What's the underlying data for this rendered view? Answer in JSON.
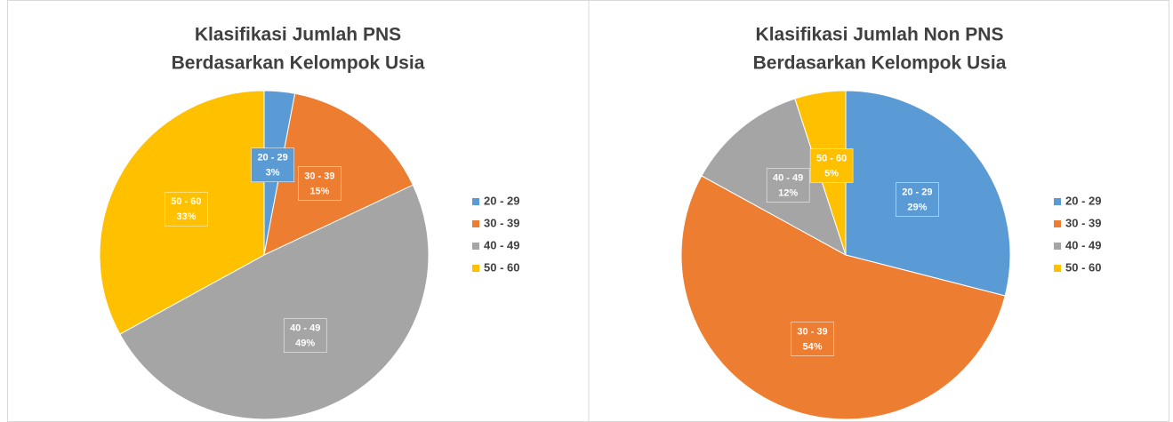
{
  "chart_data": [
    {
      "type": "pie",
      "title": "Klasifikasi Jumlah PNS",
      "subtitle": "Berdasarkan Kelompok Usia",
      "categories": [
        "20 - 29",
        "30 - 39",
        "40 - 49",
        "50 - 60"
      ],
      "values": [
        3,
        15,
        49,
        33
      ],
      "value_labels": [
        "3%",
        "15%",
        "49%",
        "33%"
      ],
      "colors": [
        "#5b9bd5",
        "#ed7d31",
        "#a5a5a5",
        "#ffc000"
      ],
      "legend": "right"
    },
    {
      "type": "pie",
      "title": "Klasifikasi Jumlah Non PNS",
      "subtitle": "Berdasarkan Kelompok Usia",
      "categories": [
        "20 - 29",
        "30 - 39",
        "40 - 49",
        "50 - 60"
      ],
      "values": [
        29,
        54,
        12,
        5
      ],
      "value_labels": [
        "29%",
        "54%",
        "12%",
        "5%"
      ],
      "colors": [
        "#5b9bd5",
        "#ed7d31",
        "#a5a5a5",
        "#ffc000"
      ],
      "legend": "right"
    }
  ]
}
